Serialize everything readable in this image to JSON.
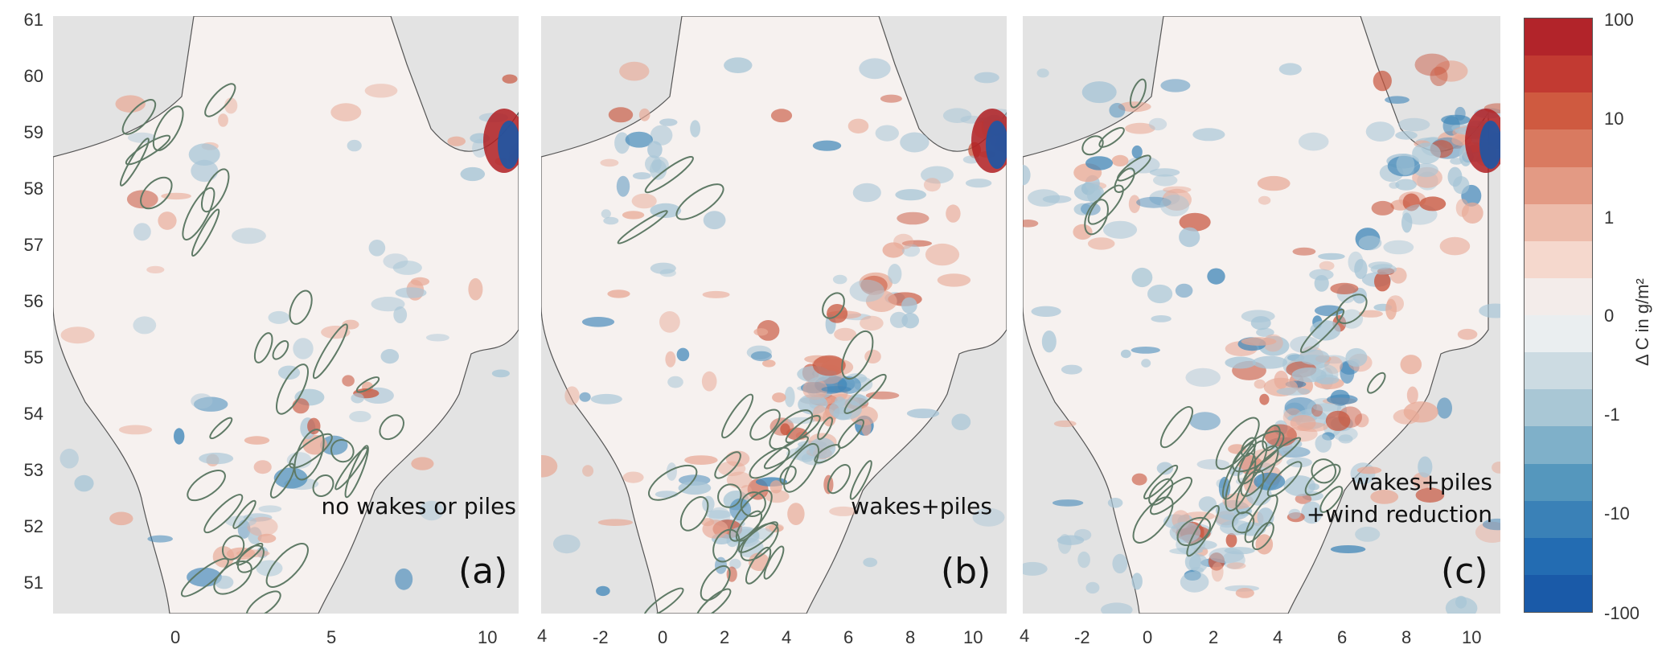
{
  "panels": [
    {
      "id": "a",
      "scenario_lines": [
        "no wakes or piles"
      ],
      "letter": "(a)",
      "x_ticks": [
        "0",
        "5",
        "10"
      ]
    },
    {
      "id": "b",
      "scenario_lines": [
        "wakes+piles"
      ],
      "letter": "(b)",
      "x_ticks": [
        "4",
        "-2",
        "0",
        "2",
        "4",
        "6",
        "8",
        "10"
      ]
    },
    {
      "id": "c",
      "scenario_lines": [
        "wakes+piles",
        "+wind reduction"
      ],
      "letter": "(c)",
      "x_ticks": [
        "4",
        "-2",
        "0",
        "2",
        "4",
        "6",
        "8",
        "10"
      ]
    }
  ],
  "y_ticks": [
    "61",
    "60",
    "59",
    "58",
    "57",
    "56",
    "55",
    "54",
    "53",
    "52",
    "51"
  ],
  "colorbar": {
    "title": "Δ C in g/m²",
    "labels": [
      "100",
      "10",
      "1",
      "0",
      "-1",
      "-10",
      "-100"
    ],
    "colors": [
      "#b2242a",
      "#c23a32",
      "#cf5a40",
      "#d97a60",
      "#e39a84",
      "#edbcab",
      "#f5d8cd",
      "#f3ecea",
      "#eaeef0",
      "#ccdbe2",
      "#a9c7d5",
      "#7fb0c9",
      "#5597bd",
      "#3a81b7",
      "#236cb2",
      "#1a5aa8"
    ]
  },
  "colors": {
    "land": "#e3e3e3",
    "sea": "#f6f1ef",
    "coast": "#555555",
    "contour": "#5f7a66",
    "red": "#c8563e",
    "light_red": "#e8a996",
    "blue": "#3f86b8",
    "light_blue": "#a7c5d6",
    "deep_blue": "#1d56a5",
    "deep_red": "#b01e22"
  }
}
